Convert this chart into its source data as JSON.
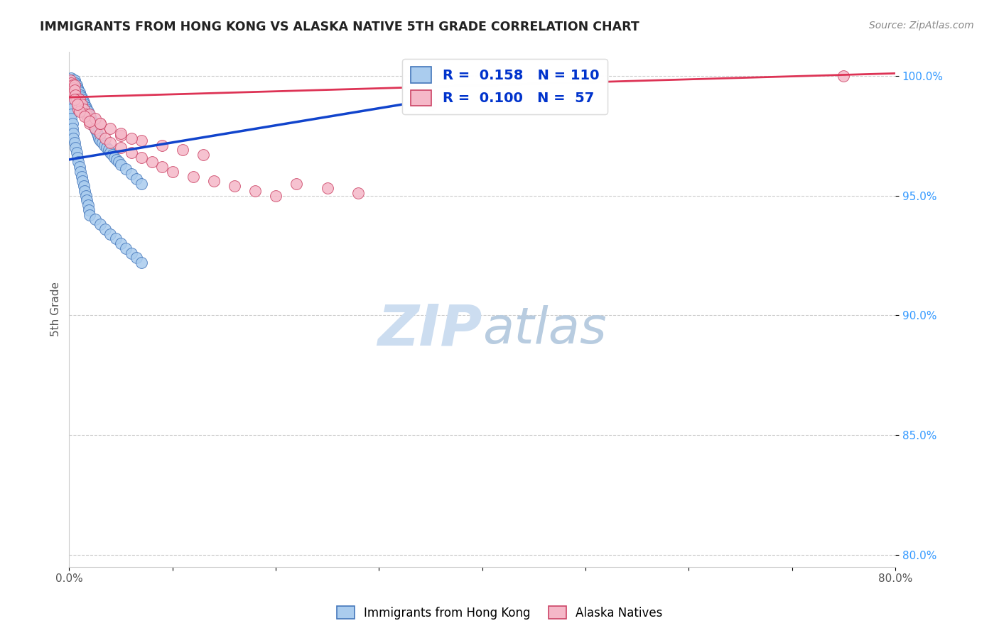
{
  "title": "IMMIGRANTS FROM HONG KONG VS ALASKA NATIVE 5TH GRADE CORRELATION CHART",
  "source": "Source: ZipAtlas.com",
  "ylabel": "5th Grade",
  "blue_label": "Immigrants from Hong Kong",
  "pink_label": "Alaska Natives",
  "blue_R": 0.158,
  "blue_N": 110,
  "pink_R": 0.1,
  "pink_N": 57,
  "xlim": [
    0.0,
    0.8
  ],
  "ylim": [
    0.795,
    1.01
  ],
  "yticks": [
    0.8,
    0.85,
    0.9,
    0.95,
    1.0
  ],
  "xticks": [
    0.0,
    0.1,
    0.2,
    0.3,
    0.4,
    0.5,
    0.6,
    0.7,
    0.8
  ],
  "xtick_labels": [
    "0.0%",
    "",
    "",
    "",
    "",
    "",
    "",
    "",
    "80.0%"
  ],
  "title_color": "#222222",
  "source_color": "#888888",
  "blue_color": "#aaccee",
  "pink_color": "#f5b8c8",
  "blue_edge_color": "#4477bb",
  "pink_edge_color": "#cc4466",
  "blue_line_color": "#1144cc",
  "pink_line_color": "#dd3355",
  "watermark_zip_color": "#ccddf0",
  "watermark_atlas_color": "#b8cce0",
  "ytick_color": "#3399ff",
  "xtick_color": "#555555",
  "ylabel_color": "#555555",
  "blue_trend_x": [
    0.0,
    0.35
  ],
  "blue_trend_y": [
    0.965,
    0.99
  ],
  "pink_trend_x": [
    0.0,
    0.8
  ],
  "pink_trend_y": [
    0.991,
    1.001
  ],
  "blue_x": [
    0.001,
    0.001,
    0.001,
    0.001,
    0.001,
    0.001,
    0.001,
    0.001,
    0.002,
    0.002,
    0.002,
    0.002,
    0.002,
    0.002,
    0.003,
    0.003,
    0.003,
    0.003,
    0.003,
    0.004,
    0.004,
    0.004,
    0.004,
    0.005,
    0.005,
    0.005,
    0.006,
    0.006,
    0.006,
    0.007,
    0.007,
    0.007,
    0.008,
    0.008,
    0.009,
    0.009,
    0.01,
    0.01,
    0.011,
    0.012,
    0.013,
    0.014,
    0.015,
    0.016,
    0.017,
    0.018,
    0.019,
    0.02,
    0.021,
    0.022,
    0.023,
    0.024,
    0.025,
    0.026,
    0.027,
    0.028,
    0.029,
    0.03,
    0.032,
    0.034,
    0.036,
    0.038,
    0.04,
    0.042,
    0.044,
    0.046,
    0.048,
    0.05,
    0.055,
    0.06,
    0.065,
    0.07,
    0.001,
    0.001,
    0.001,
    0.002,
    0.002,
    0.003,
    0.003,
    0.004,
    0.004,
    0.005,
    0.006,
    0.007,
    0.008,
    0.009,
    0.01,
    0.011,
    0.012,
    0.013,
    0.014,
    0.015,
    0.016,
    0.017,
    0.018,
    0.019,
    0.02,
    0.025,
    0.03,
    0.035,
    0.04,
    0.045,
    0.05,
    0.055,
    0.06,
    0.065,
    0.07,
    0.35
  ],
  "blue_y": [
    0.998,
    0.997,
    0.996,
    0.995,
    0.994,
    0.993,
    0.992,
    0.991,
    0.999,
    0.998,
    0.997,
    0.996,
    0.995,
    0.994,
    0.998,
    0.997,
    0.996,
    0.995,
    0.994,
    0.997,
    0.996,
    0.995,
    0.994,
    0.998,
    0.996,
    0.994,
    0.997,
    0.995,
    0.993,
    0.996,
    0.994,
    0.992,
    0.995,
    0.993,
    0.994,
    0.992,
    0.993,
    0.991,
    0.992,
    0.991,
    0.99,
    0.989,
    0.988,
    0.987,
    0.986,
    0.985,
    0.984,
    0.983,
    0.982,
    0.981,
    0.98,
    0.979,
    0.978,
    0.977,
    0.976,
    0.975,
    0.974,
    0.973,
    0.972,
    0.971,
    0.97,
    0.969,
    0.968,
    0.967,
    0.966,
    0.965,
    0.964,
    0.963,
    0.961,
    0.959,
    0.957,
    0.955,
    0.99,
    0.988,
    0.986,
    0.984,
    0.982,
    0.98,
    0.978,
    0.976,
    0.974,
    0.972,
    0.97,
    0.968,
    0.966,
    0.964,
    0.962,
    0.96,
    0.958,
    0.956,
    0.954,
    0.952,
    0.95,
    0.948,
    0.946,
    0.944,
    0.942,
    0.94,
    0.938,
    0.936,
    0.934,
    0.932,
    0.93,
    0.928,
    0.926,
    0.924,
    0.922,
    0.988
  ],
  "pink_x": [
    0.001,
    0.001,
    0.001,
    0.002,
    0.002,
    0.002,
    0.003,
    0.003,
    0.004,
    0.004,
    0.005,
    0.005,
    0.006,
    0.007,
    0.008,
    0.009,
    0.01,
    0.012,
    0.014,
    0.016,
    0.018,
    0.02,
    0.025,
    0.03,
    0.035,
    0.04,
    0.05,
    0.06,
    0.07,
    0.08,
    0.09,
    0.1,
    0.12,
    0.14,
    0.16,
    0.18,
    0.2,
    0.22,
    0.25,
    0.28,
    0.05,
    0.07,
    0.09,
    0.11,
    0.13,
    0.03,
    0.04,
    0.05,
    0.06,
    0.02,
    0.025,
    0.03,
    0.01,
    0.015,
    0.02,
    0.005,
    0.008,
    0.75
  ],
  "pink_y": [
    0.998,
    0.996,
    0.994,
    0.997,
    0.995,
    0.993,
    0.996,
    0.994,
    0.995,
    0.993,
    0.996,
    0.994,
    0.992,
    0.99,
    0.988,
    0.986,
    0.99,
    0.988,
    0.986,
    0.984,
    0.982,
    0.98,
    0.978,
    0.976,
    0.974,
    0.972,
    0.97,
    0.968,
    0.966,
    0.964,
    0.962,
    0.96,
    0.958,
    0.956,
    0.954,
    0.952,
    0.95,
    0.955,
    0.953,
    0.951,
    0.975,
    0.973,
    0.971,
    0.969,
    0.967,
    0.98,
    0.978,
    0.976,
    0.974,
    0.984,
    0.982,
    0.98,
    0.985,
    0.983,
    0.981,
    0.99,
    0.988,
    1.0
  ]
}
